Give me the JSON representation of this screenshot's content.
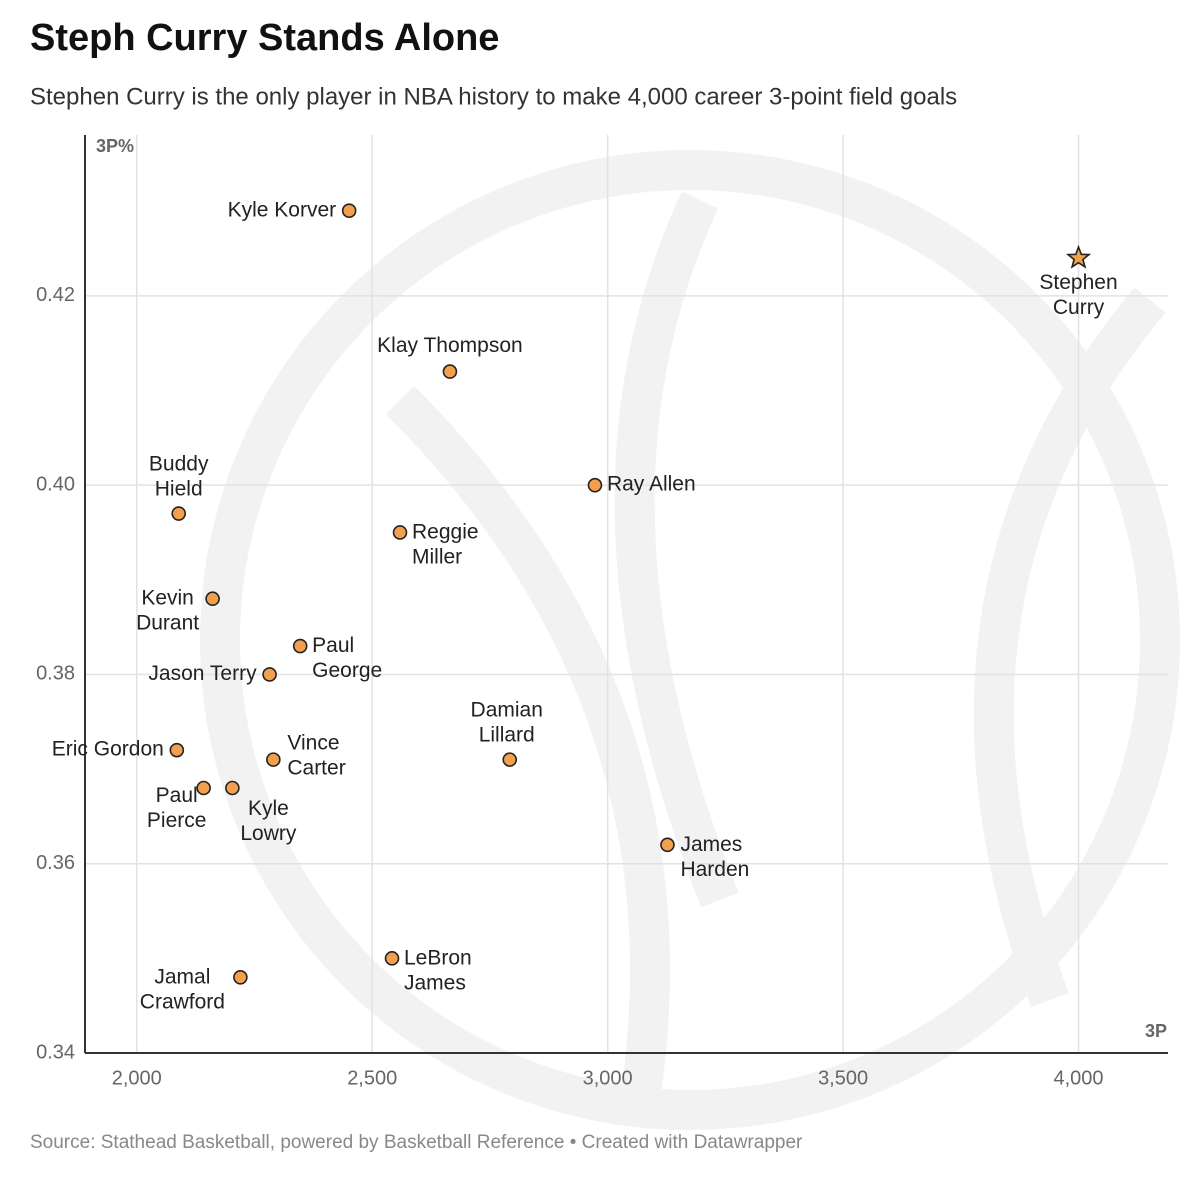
{
  "chart_data": {
    "type": "scatter",
    "title": "Steph Curry Stands Alone",
    "subtitle": "Stephen Curry is the only player in NBA history to make 4,000 career 3-point field goals",
    "x_label": "3P",
    "y_label": "3P%",
    "source": "Source: Stathead Basketball, powered by Basketball Reference • Created with Datawrapper",
    "labels": [
      "Kyle Korver",
      "Klay Thompson",
      "Buddy Hield",
      "Ray Allen",
      "Reggie Miller",
      "Kevin Durant",
      "Paul George",
      "Jason Terry",
      "Eric Gordon",
      "Vince Carter",
      "Damian Lillard",
      "Paul Pierce",
      "Kyle Lowry",
      "James Harden",
      "LeBron James",
      "Jamal Crawford",
      "Stephen Curry"
    ],
    "x": [
      2451,
      2665,
      2089,
      2973,
      2559,
      2161,
      2347,
      2282,
      2085,
      2290,
      2792,
      2142,
      2203,
      3127,
      2542,
      2220,
      4000
    ],
    "values": [
      0.429,
      0.412,
      0.397,
      0.4,
      0.395,
      0.388,
      0.383,
      0.38,
      0.372,
      0.371,
      0.371,
      0.368,
      0.368,
      0.362,
      0.35,
      0.348,
      0.424
    ],
    "markers": [
      "circle",
      "circle",
      "circle",
      "circle",
      "circle",
      "circle",
      "circle",
      "circle",
      "circle",
      "circle",
      "circle",
      "circle",
      "circle",
      "circle",
      "circle",
      "circle",
      "star"
    ],
    "color": "#f2a04e",
    "xlim": [
      1890,
      4190
    ],
    "ylim": [
      0.34,
      0.437
    ],
    "xticks": [
      {
        "value": 2000,
        "label": "2,000"
      },
      {
        "value": 2500,
        "label": "2,500"
      },
      {
        "value": 3000,
        "label": "3,000"
      },
      {
        "value": 3500,
        "label": "3,500"
      },
      {
        "value": 4000,
        "label": "4,000"
      }
    ],
    "yticks": [
      0.34,
      0.36,
      0.38,
      {
        "value": 0.4,
        "label": "0.40"
      },
      0.42
    ],
    "grid": true
  }
}
